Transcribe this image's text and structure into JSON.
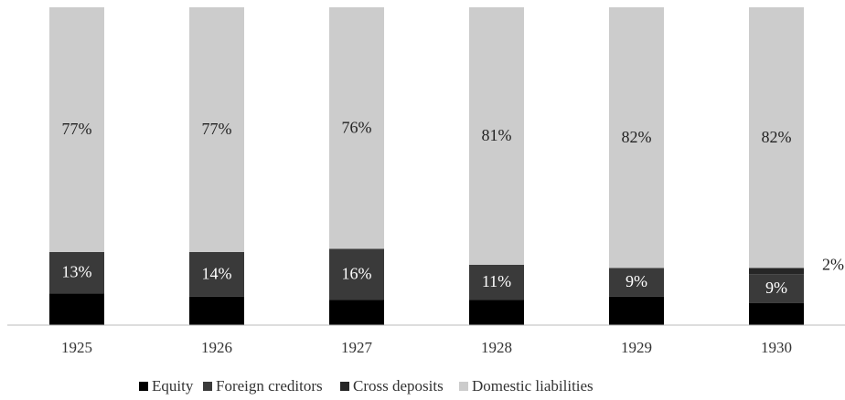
{
  "chart_data": {
    "type": "stacked_bar",
    "categories": [
      "1925",
      "1926",
      "1927",
      "1928",
      "1929",
      "1930"
    ],
    "ylim": [
      0,
      100
    ],
    "series": [
      {
        "name": "Equity",
        "color": "#000000",
        "values": [
          10,
          9,
          8,
          8,
          9,
          7
        ]
      },
      {
        "name": "Foreign creditors",
        "color": "#3a3a3a",
        "values": [
          13,
          14,
          16,
          11,
          9,
          9
        ],
        "value_labels": [
          "13%",
          "14%",
          "16%",
          "11%",
          "9%",
          "9%"
        ]
      },
      {
        "name": "Cross deposits",
        "color": "#262626",
        "values": [
          0,
          0,
          0,
          0,
          0,
          2
        ],
        "value_labels": [
          null,
          null,
          null,
          null,
          null,
          "2%"
        ]
      },
      {
        "name": "Domestic liabilities",
        "color": "#cccccc",
        "values": [
          77,
          77,
          76,
          81,
          82,
          82
        ],
        "value_labels": [
          "77%",
          "77%",
          "76%",
          "81%",
          "82%",
          "82%"
        ]
      }
    ]
  }
}
